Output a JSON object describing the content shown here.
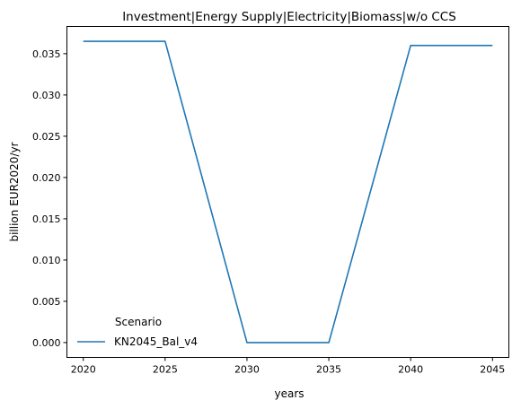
{
  "chart_data": {
    "type": "line",
    "title": "Investment|Energy Supply|Electricity|Biomass|w/o CCS",
    "xlabel": "years",
    "ylabel": "billion EUR2020/yr",
    "x": [
      2020,
      2025,
      2030,
      2035,
      2040,
      2045
    ],
    "xticks": [
      2020,
      2025,
      2030,
      2035,
      2040,
      2045
    ],
    "xlim": [
      2019,
      2046
    ],
    "yticks": [
      0.0,
      0.005,
      0.01,
      0.015,
      0.02,
      0.025,
      0.03,
      0.035
    ],
    "ytick_labels": [
      "0.000",
      "0.005",
      "0.010",
      "0.015",
      "0.020",
      "0.025",
      "0.030",
      "0.035"
    ],
    "ylim": [
      -0.0018,
      0.0383
    ],
    "series": [
      {
        "name": "KN2045_Bal_v4",
        "color": "#1f77b4",
        "values": [
          0.0365,
          0.0365,
          0.0,
          0.0,
          0.036,
          0.036
        ]
      }
    ],
    "legend": {
      "title": "Scenario",
      "placement": "lower-left"
    },
    "grid": false
  }
}
